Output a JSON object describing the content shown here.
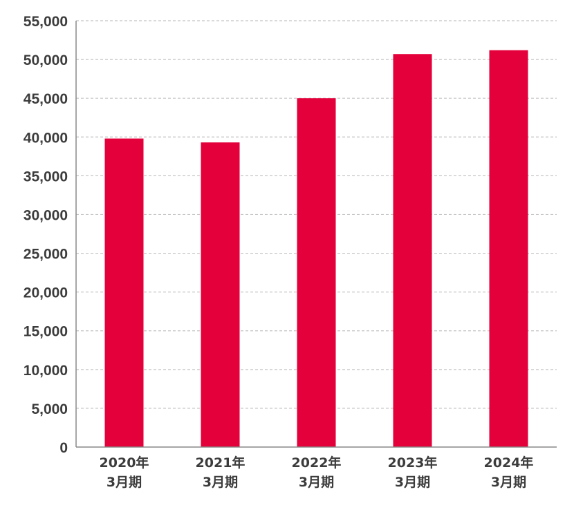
{
  "chart_data": {
    "type": "bar",
    "categories": [
      [
        "2020年",
        "3月期"
      ],
      [
        "2021年",
        "3月期"
      ],
      [
        "2022年",
        "3月期"
      ],
      [
        "2023年",
        "3月期"
      ],
      [
        "2024年",
        "3月期"
      ]
    ],
    "values": [
      39800,
      39300,
      45000,
      50700,
      51200
    ],
    "ylim": [
      0,
      55000
    ],
    "yticks": [
      0,
      5000,
      10000,
      15000,
      20000,
      25000,
      30000,
      35000,
      40000,
      45000,
      50000,
      55000
    ],
    "ytick_labels": [
      "0",
      "5,000",
      "10,000",
      "15,000",
      "20,000",
      "25,000",
      "30,000",
      "35,000",
      "40,000",
      "45,000",
      "50,000",
      "55,000"
    ],
    "grid": true,
    "bar_color": "#e4003a",
    "title": "",
    "xlabel": "",
    "ylabel": ""
  }
}
